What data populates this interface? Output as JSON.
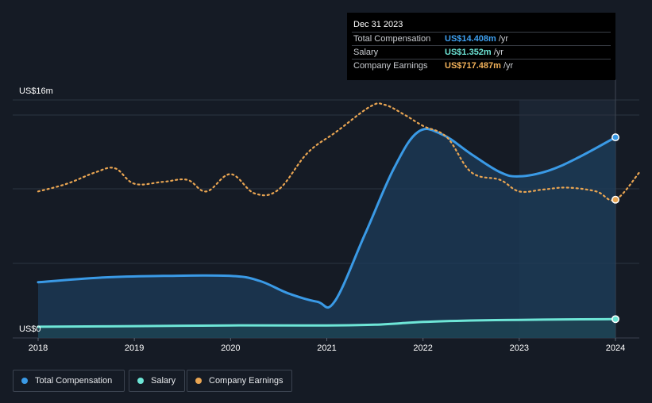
{
  "tooltip": {
    "date": "Dec 31 2023",
    "rows": [
      {
        "label": "Total Compensation",
        "value": "US$14.408m",
        "unit": "/yr",
        "color": "#3ea0f0"
      },
      {
        "label": "Salary",
        "value": "US$1.352m",
        "unit": "/yr",
        "color": "#6ee6d7"
      },
      {
        "label": "Company Earnings",
        "value": "US$717.487m",
        "unit": "/yr",
        "color": "#f2b25a"
      }
    ]
  },
  "legend": [
    {
      "label": "Total Compensation",
      "color": "#3a9ae6"
    },
    {
      "label": "Salary",
      "color": "#6ee6d7"
    },
    {
      "label": "Company Earnings",
      "color": "#e9a552"
    }
  ],
  "chart_data": {
    "type": "line",
    "title": "",
    "xlabel": "",
    "ylabel": "",
    "y_axis_labels": [
      "US$16m",
      "US$0"
    ],
    "ylim": [
      0,
      16
    ],
    "xlim": [
      2018,
      2024.25
    ],
    "x_ticks": [
      2018,
      2019,
      2020,
      2021,
      2022,
      2023,
      2024
    ],
    "x_tick_labels": [
      "2018",
      "2019",
      "2020",
      "2021",
      "2022",
      "2023",
      "2024"
    ],
    "highlight_range": [
      2023,
      2024
    ],
    "tooltip_x": 2024,
    "series": [
      {
        "name": "Total Compensation",
        "unit": "US$m",
        "color": "#3a9ae6",
        "area": true,
        "x": [
          2018,
          2018.7,
          2019.3,
          2020.0,
          2020.3,
          2020.6,
          2020.9,
          2021.08,
          2021.4,
          2021.7,
          2021.95,
          2022.2,
          2022.5,
          2022.8,
          2023.0,
          2023.3,
          2023.6,
          2024.0
        ],
        "values": [
          4.0,
          4.35,
          4.45,
          4.45,
          4.1,
          3.2,
          2.6,
          2.6,
          7.5,
          12.2,
          14.8,
          14.6,
          13.2,
          11.9,
          11.6,
          12.0,
          12.9,
          14.4
        ]
      },
      {
        "name": "Salary",
        "unit": "US$m",
        "color": "#6ee6d7",
        "area": true,
        "x": [
          2018,
          2019,
          2020,
          2021,
          2021.5,
          2022,
          2022.5,
          2023,
          2023.5,
          2024.0
        ],
        "values": [
          0.8,
          0.85,
          0.9,
          0.9,
          0.95,
          1.15,
          1.25,
          1.3,
          1.33,
          1.35
        ]
      },
      {
        "name": "Company Earnings",
        "unit": "US$m",
        "color": "#e9a552",
        "dashed": true,
        "x": [
          2018,
          2018.3,
          2018.6,
          2018.8,
          2019.0,
          2019.3,
          2019.55,
          2019.75,
          2020.0,
          2020.25,
          2020.5,
          2020.8,
          2021.1,
          2021.45,
          2021.6,
          2021.8,
          2022.0,
          2022.25,
          2022.5,
          2022.8,
          2023.0,
          2023.25,
          2023.5,
          2023.8,
          2024.0,
          2024.25
        ],
        "values": [
          760,
          800,
          860,
          880,
          800,
          810,
          820,
          760,
          850,
          750,
          770,
          960,
          1070,
          1200,
          1210,
          1160,
          1100,
          1040,
          860,
          820,
          760,
          770,
          780,
          760,
          717.487,
          860
        ]
      }
    ]
  }
}
